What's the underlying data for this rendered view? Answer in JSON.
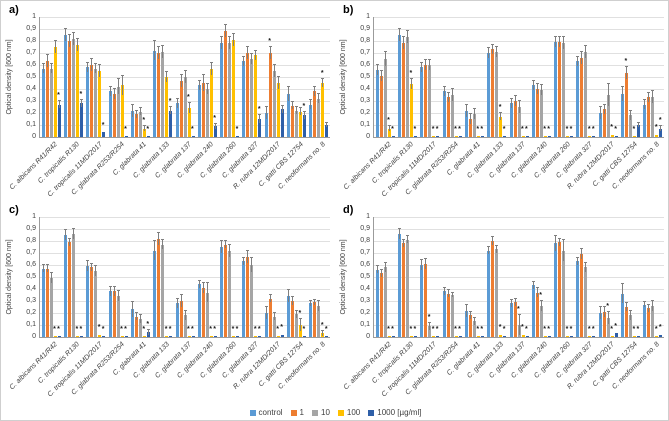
{
  "chart_data": {
    "type": "bar",
    "title": "",
    "ylabel": "Optical density [600 nm]",
    "xlabel": "",
    "ylim": [
      0,
      1
    ],
    "ytick_step": 0.1,
    "yticks": [
      "1",
      "0,9",
      "0,8",
      "0,7",
      "0,6",
      "0,5",
      "0,4",
      "0,3",
      "0,2",
      "0,1",
      "0"
    ],
    "grid": true,
    "decimal_separator": ",",
    "significance_marker": "*",
    "categories": [
      "C. albicans R41/R42",
      "C. tropicalis R130",
      "C. tropicalis 11MD/2017",
      "C. glabrata R253/R254",
      "C. glabrata 41",
      "C. glabrata 133",
      "C. glabrata 137",
      "C. glabrata 240",
      "C. glabrata 260",
      "C. glabrata 327",
      "R. rubra 12MD/2017",
      "C. gatti CBS 12754",
      "C. neoformans no. 8"
    ],
    "series_names": [
      "control",
      "1",
      "10",
      "100",
      "1000"
    ],
    "legend": {
      "position": "bottom",
      "unit_suffix": "[µg/ml]",
      "entries": [
        {
          "label": "control",
          "color": "#5B9BD5"
        },
        {
          "label": "1",
          "color": "#ED7D31"
        },
        {
          "label": "10",
          "color": "#A5A5A5"
        },
        {
          "label": "100",
          "color": "#FFC000"
        },
        {
          "label": "1000",
          "color": "#2E5FA8"
        }
      ]
    },
    "error_bar_color": "#7f7f7f",
    "panels": [
      {
        "label": "a)",
        "series_values": [
          [
            0.57,
            0.63,
            0.57,
            0.75,
            0.27
          ],
          [
            0.85,
            0.8,
            0.82,
            0.77,
            0.28
          ],
          [
            0.58,
            0.6,
            0.57,
            0.55,
            0.04
          ],
          [
            0.38,
            0.36,
            0.42,
            0.43,
            0.01
          ],
          [
            0.22,
            0.19,
            0.21,
            0.07,
            0.01
          ],
          [
            0.72,
            0.7,
            0.71,
            0.5,
            0.22
          ],
          [
            0.28,
            0.47,
            0.5,
            0.24,
            0.01
          ],
          [
            0.43,
            0.45,
            0.4,
            0.57,
            0.09
          ],
          [
            0.78,
            0.88,
            0.78,
            0.81,
            0.01
          ],
          [
            0.63,
            0.7,
            0.65,
            0.68,
            0.15
          ],
          [
            0.2,
            0.7,
            0.55,
            0.45,
            0.23
          ],
          [
            0.36,
            0.26,
            0.22,
            0.21,
            0.18
          ],
          [
            0.27,
            0.38,
            0.32,
            0.45,
            0.1
          ]
        ],
        "errors": [
          [
            0.04,
            0.05,
            0.04,
            0.05,
            0.03
          ],
          [
            0.05,
            0.05,
            0.05,
            0.05,
            0.03
          ],
          [
            0.04,
            0.05,
            0.04,
            0.05,
            0.01
          ],
          [
            0.04,
            0.04,
            0.06,
            0.08,
            0.01
          ],
          [
            0.05,
            0.03,
            0.03,
            0.02,
            0.01
          ],
          [
            0.08,
            0.05,
            0.05,
            0.04,
            0.03
          ],
          [
            0.04,
            0.05,
            0.05,
            0.04,
            0.01
          ],
          [
            0.04,
            0.07,
            0.04,
            0.05,
            0.02
          ],
          [
            0.05,
            0.05,
            0.05,
            0.05,
            0.01
          ],
          [
            0.04,
            0.05,
            0.04,
            0.04,
            0.03
          ],
          [
            0.05,
            0.05,
            0.05,
            0.05,
            0.03
          ],
          [
            0.06,
            0.03,
            0.03,
            0.03,
            0.03
          ],
          [
            0.04,
            0.04,
            0.04,
            0.03,
            0.02
          ]
        ],
        "significance": [
          [
            4
          ],
          [
            4
          ],
          [
            4
          ],
          [
            4
          ],
          [
            3,
            4
          ],
          [
            4
          ],
          [
            3,
            4
          ],
          [
            4
          ],
          [
            4
          ],
          [
            4
          ],
          [
            1
          ],
          [
            4
          ],
          [
            3
          ]
        ]
      },
      {
        "label": "b)",
        "series_values": [
          [
            0.56,
            0.51,
            0.65,
            0.07,
            0.01
          ],
          [
            0.85,
            0.78,
            0.83,
            0.44,
            0.01
          ],
          [
            0.58,
            0.6,
            0.6,
            0.01,
            0.01
          ],
          [
            0.38,
            0.33,
            0.35,
            0.01,
            0.01
          ],
          [
            0.22,
            0.15,
            0.19,
            0.01,
            0.01
          ],
          [
            0.7,
            0.73,
            0.71,
            0.17,
            0.01
          ],
          [
            0.28,
            0.3,
            0.25,
            0.01,
            0.01
          ],
          [
            0.43,
            0.4,
            0.39,
            0.01,
            0.01
          ],
          [
            0.79,
            0.79,
            0.78,
            0.01,
            0.01
          ],
          [
            0.63,
            0.66,
            0.71,
            0.01,
            0.01
          ],
          [
            0.2,
            0.23,
            0.35,
            0.02,
            0.01
          ],
          [
            0.36,
            0.53,
            0.18,
            0.01,
            0.1
          ],
          [
            0.27,
            0.33,
            0.33,
            0.02,
            0.07
          ]
        ],
        "errors": [
          [
            0.04,
            0.04,
            0.06,
            0.02,
            0.01
          ],
          [
            0.05,
            0.05,
            0.05,
            0.04,
            0.01
          ],
          [
            0.04,
            0.04,
            0.04,
            0.01,
            0.01
          ],
          [
            0.04,
            0.04,
            0.05,
            0.01,
            0.01
          ],
          [
            0.05,
            0.04,
            0.04,
            0.01,
            0.01
          ],
          [
            0.04,
            0.04,
            0.04,
            0.03,
            0.01
          ],
          [
            0.04,
            0.04,
            0.05,
            0.01,
            0.01
          ],
          [
            0.04,
            0.04,
            0.04,
            0.01,
            0.01
          ],
          [
            0.04,
            0.04,
            0.05,
            0.01,
            0.01
          ],
          [
            0.04,
            0.05,
            0.05,
            0.01,
            0.01
          ],
          [
            0.05,
            0.04,
            0.09,
            0.01,
            0.01
          ],
          [
            0.06,
            0.05,
            0.04,
            0.01,
            0.02
          ],
          [
            0.04,
            0.04,
            0.05,
            0.01,
            0.02
          ]
        ],
        "significance": [
          [
            3,
            4
          ],
          [
            3,
            4
          ],
          [
            3,
            4
          ],
          [
            3,
            4
          ],
          [
            3,
            4
          ],
          [
            3,
            4
          ],
          [
            3,
            4
          ],
          [
            3,
            4
          ],
          [
            3,
            4
          ],
          [
            3,
            4
          ],
          [
            3,
            4
          ],
          [
            1,
            3
          ],
          [
            3,
            4
          ]
        ]
      },
      {
        "label": "c)",
        "series_values": [
          [
            0.57,
            0.57,
            0.49,
            0.01,
            0.01
          ],
          [
            0.85,
            0.79,
            0.86,
            0.01,
            0.01
          ],
          [
            0.59,
            0.58,
            0.55,
            0.02,
            0.01
          ],
          [
            0.38,
            0.38,
            0.34,
            0.01,
            0.01
          ],
          [
            0.23,
            0.17,
            0.15,
            0.01,
            0.04
          ],
          [
            0.72,
            0.82,
            0.77,
            0.01,
            0.01
          ],
          [
            0.28,
            0.3,
            0.18,
            0.01,
            0.01
          ],
          [
            0.44,
            0.41,
            0.37,
            0.01,
            0.01
          ],
          [
            0.75,
            0.77,
            0.72,
            0.01,
            0.01
          ],
          [
            0.63,
            0.67,
            0.6,
            0.01,
            0.01
          ],
          [
            0.2,
            0.32,
            0.17,
            0.01,
            0.02
          ],
          [
            0.34,
            0.3,
            0.19,
            0.1,
            0.01
          ],
          [
            0.28,
            0.29,
            0.26,
            0.03,
            0.01
          ]
        ],
        "errors": [
          [
            0.03,
            0.03,
            0.04,
            0.01,
            0.01
          ],
          [
            0.04,
            0.03,
            0.04,
            0.01,
            0.01
          ],
          [
            0.04,
            0.03,
            0.04,
            0.01,
            0.01
          ],
          [
            0.04,
            0.04,
            0.04,
            0.01,
            0.01
          ],
          [
            0.06,
            0.03,
            0.03,
            0.01,
            0.02
          ],
          [
            0.08,
            0.05,
            0.04,
            0.01,
            0.01
          ],
          [
            0.04,
            0.05,
            0.04,
            0.01,
            0.01
          ],
          [
            0.03,
            0.04,
            0.08,
            0.01,
            0.01
          ],
          [
            0.05,
            0.03,
            0.05,
            0.01,
            0.01
          ],
          [
            0.03,
            0.05,
            0.06,
            0.01,
            0.01
          ],
          [
            0.05,
            0.03,
            0.03,
            0.01,
            0.01
          ],
          [
            0.05,
            0.03,
            0.03,
            0.05,
            0.01
          ],
          [
            0.02,
            0.02,
            0.04,
            0.02,
            0.01
          ]
        ],
        "significance": [
          [
            3,
            4
          ],
          [
            3,
            4
          ],
          [
            3,
            4
          ],
          [
            3,
            4
          ],
          [
            3,
            4
          ],
          [
            3,
            4
          ],
          [
            3,
            4
          ],
          [
            3,
            4
          ],
          [
            3,
            4
          ],
          [
            3,
            4
          ],
          [
            3,
            4
          ],
          [
            3,
            4
          ],
          [
            3,
            4
          ]
        ]
      },
      {
        "label": "d)",
        "series_values": [
          [
            0.56,
            0.53,
            0.58,
            0.01,
            0.01
          ],
          [
            0.86,
            0.78,
            0.81,
            0.01,
            0.01
          ],
          [
            0.6,
            0.61,
            0.09,
            0.01,
            0.01
          ],
          [
            0.38,
            0.36,
            0.35,
            0.01,
            0.01
          ],
          [
            0.22,
            0.18,
            0.13,
            0.01,
            0.01
          ],
          [
            0.72,
            0.8,
            0.73,
            0.02,
            0.01
          ],
          [
            0.28,
            0.29,
            0.1,
            0.02,
            0.01
          ],
          [
            0.43,
            0.37,
            0.26,
            0.01,
            0.01
          ],
          [
            0.78,
            0.79,
            0.72,
            0.01,
            0.01
          ],
          [
            0.63,
            0.69,
            0.58,
            0.01,
            0.01
          ],
          [
            0.2,
            0.21,
            0.16,
            0.01,
            0.03
          ],
          [
            0.36,
            0.25,
            0.18,
            0.01,
            0.01
          ],
          [
            0.27,
            0.24,
            0.26,
            0.01,
            0.02
          ]
        ],
        "errors": [
          [
            0.03,
            0.03,
            0.04,
            0.01,
            0.01
          ],
          [
            0.04,
            0.03,
            0.03,
            0.01,
            0.01
          ],
          [
            0.04,
            0.04,
            0.03,
            0.01,
            0.01
          ],
          [
            0.03,
            0.03,
            0.02,
            0.01,
            0.01
          ],
          [
            0.05,
            0.03,
            0.03,
            0.01,
            0.01
          ],
          [
            0.03,
            0.03,
            0.03,
            0.01,
            0.01
          ],
          [
            0.03,
            0.03,
            0.08,
            0.01,
            0.01
          ],
          [
            0.03,
            0.04,
            0.04,
            0.01,
            0.01
          ],
          [
            0.06,
            0.03,
            0.09,
            0.01,
            0.01
          ],
          [
            0.03,
            0.04,
            0.04,
            0.01,
            0.01
          ],
          [
            0.05,
            0.04,
            0.05,
            0.01,
            0.01
          ],
          [
            0.08,
            0.03,
            0.04,
            0.01,
            0.01
          ],
          [
            0.02,
            0.03,
            0.04,
            0.01,
            0.01
          ]
        ],
        "significance": [
          [
            3,
            4
          ],
          [
            3,
            4
          ],
          [
            2,
            3,
            4
          ],
          [
            3,
            4
          ],
          [
            3,
            4
          ],
          [
            3,
            4
          ],
          [
            2,
            3,
            4
          ],
          [
            2,
            3,
            4
          ],
          [
            3,
            4
          ],
          [
            3,
            4
          ],
          [
            2,
            3,
            4
          ],
          [
            3,
            4
          ],
          [
            3,
            4
          ]
        ]
      }
    ]
  }
}
